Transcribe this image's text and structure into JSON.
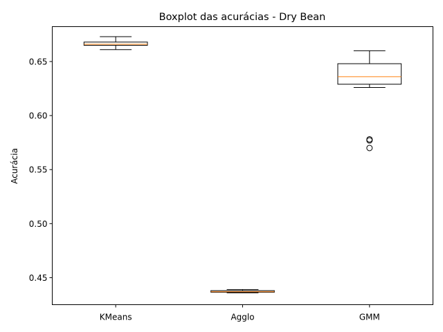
{
  "chart_data": {
    "type": "boxplot",
    "title": "Boxplot das acurácias - Dry Bean",
    "xlabel": "",
    "ylabel": "Acurácia",
    "ylim": [
      0.425,
      0.6823
    ],
    "yticks": [
      0.45,
      0.5,
      0.55,
      0.6,
      0.65
    ],
    "ytick_labels": [
      "0.45",
      "0.50",
      "0.55",
      "0.60",
      "0.65"
    ],
    "grid": false,
    "categories": [
      "KMeans",
      "Agglo",
      "GMM"
    ],
    "boxes": [
      {
        "label": "KMeans",
        "whisker_low": 0.661,
        "q1": 0.665,
        "median": 0.666,
        "q3": 0.668,
        "whisker_high": 0.673,
        "outliers": []
      },
      {
        "label": "Agglo",
        "whisker_low": 0.436,
        "q1": 0.4365,
        "median": 0.437,
        "q3": 0.438,
        "whisker_high": 0.439,
        "outliers": []
      },
      {
        "label": "GMM",
        "whisker_low": 0.626,
        "q1": 0.629,
        "median": 0.636,
        "q3": 0.648,
        "whisker_high": 0.66,
        "outliers": [
          0.578,
          0.577,
          0.57
        ]
      }
    ],
    "colors": {
      "box": "#000000",
      "median": "#ff7f0e",
      "background": "#ffffff"
    }
  }
}
